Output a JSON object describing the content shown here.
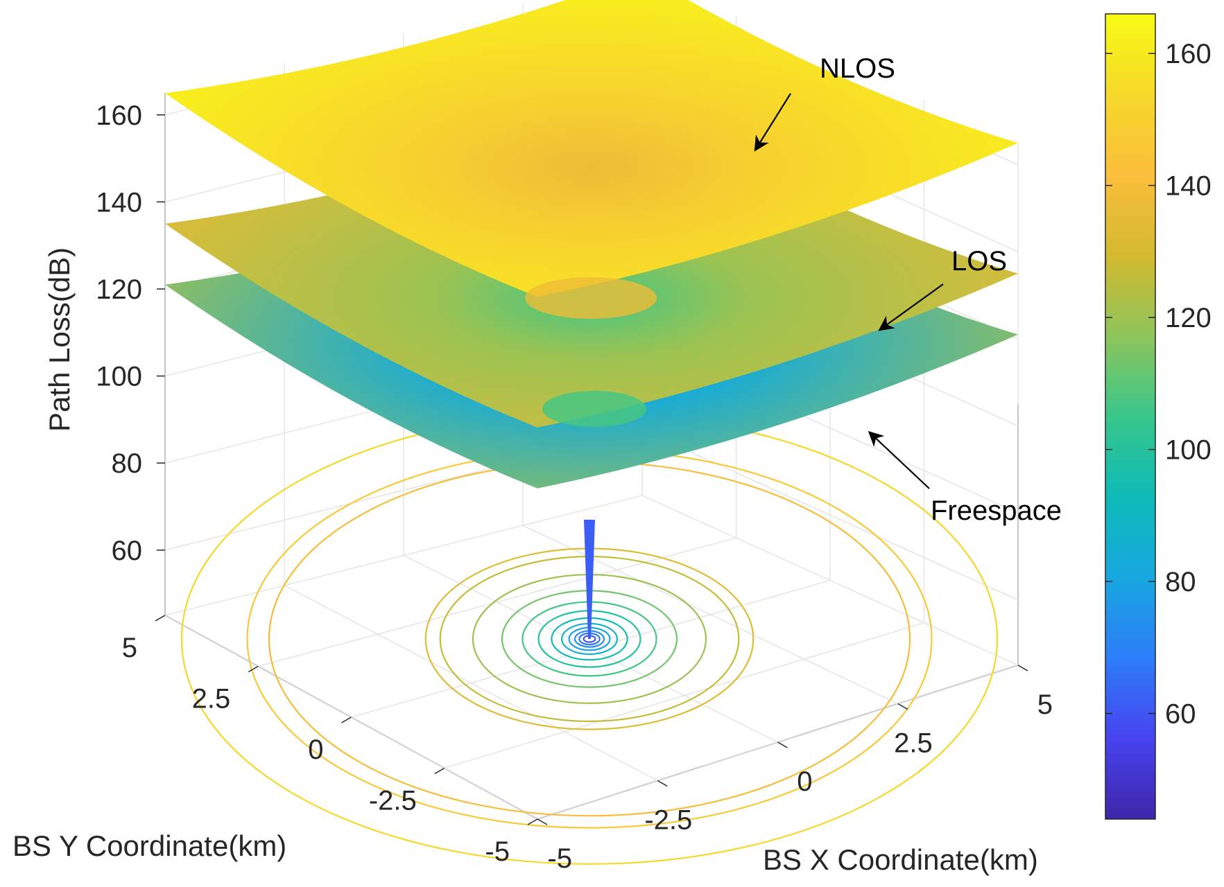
{
  "chart_data": {
    "type": "surface3d",
    "title": "",
    "xlabel": "BS X Coordinate(km)",
    "ylabel": "BS Y Coordinate(km)",
    "zlabel": "Path Loss(dB)",
    "x_ticks": [
      "-5",
      "-2.5",
      "0",
      "2.5",
      "5"
    ],
    "y_ticks": [
      "-5",
      "-2.5",
      "0",
      "2.5",
      "5"
    ],
    "z_ticks": [
      "60",
      "80",
      "100",
      "120",
      "140",
      "160"
    ],
    "xlim": [
      -5,
      5
    ],
    "ylim": [
      -5,
      5
    ],
    "zlim": [
      45,
      165
    ],
    "grid": true,
    "colormap": "parula",
    "colorbar": {
      "ticks": [
        "60",
        "80",
        "100",
        "120",
        "140",
        "160"
      ],
      "range": [
        44,
        166
      ],
      "colors": [
        "#3e26a8",
        "#4743f0",
        "#2d7df8",
        "#18a7e0",
        "#0dbbb8",
        "#38c68a",
        "#8ec55b",
        "#d3b92f",
        "#fcbe3c",
        "#f5d92a",
        "#f9fb15"
      ]
    },
    "series": [
      {
        "name": "NLOS",
        "corner_value": 165,
        "center_value": 137
      },
      {
        "name": "LOS",
        "corner_value": 135,
        "center_value": 107
      },
      {
        "name": "Freespace",
        "corner_value": 121,
        "center_value": 52
      }
    ],
    "contour_levels": 12,
    "annotations": [
      "NLOS",
      "LOS",
      "Freespace"
    ]
  }
}
